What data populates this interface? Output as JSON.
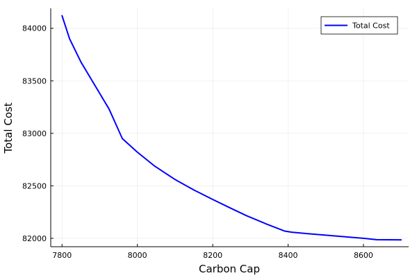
{
  "chart_data": {
    "type": "line",
    "title": "",
    "xlabel": "Carbon Cap",
    "ylabel": "Total Cost",
    "xlim": [
      7770,
      8720
    ],
    "ylim": [
      81920,
      84190
    ],
    "xticks": [
      7800,
      8000,
      8200,
      8400,
      8600
    ],
    "yticks": [
      82000,
      82500,
      83000,
      83500,
      84000
    ],
    "grid": true,
    "legend_position": "top-right",
    "series": [
      {
        "name": "Total Cost",
        "color": "#0000ff",
        "points": [
          [
            7800,
            84120
          ],
          [
            7820,
            83900
          ],
          [
            7850,
            83680
          ],
          [
            7875,
            83530
          ],
          [
            7900,
            83380
          ],
          [
            7925,
            83230
          ],
          [
            7960,
            82950
          ],
          [
            8000,
            82820
          ],
          [
            8045,
            82690
          ],
          [
            8100,
            82560
          ],
          [
            8150,
            82460
          ],
          [
            8200,
            82370
          ],
          [
            8240,
            82300
          ],
          [
            8290,
            82215
          ],
          [
            8340,
            82140
          ],
          [
            8390,
            82070
          ],
          [
            8410,
            82058
          ],
          [
            8450,
            82045
          ],
          [
            8500,
            82030
          ],
          [
            8550,
            82015
          ],
          [
            8600,
            82000
          ],
          [
            8635,
            81987
          ],
          [
            8700,
            81985
          ]
        ]
      }
    ]
  }
}
